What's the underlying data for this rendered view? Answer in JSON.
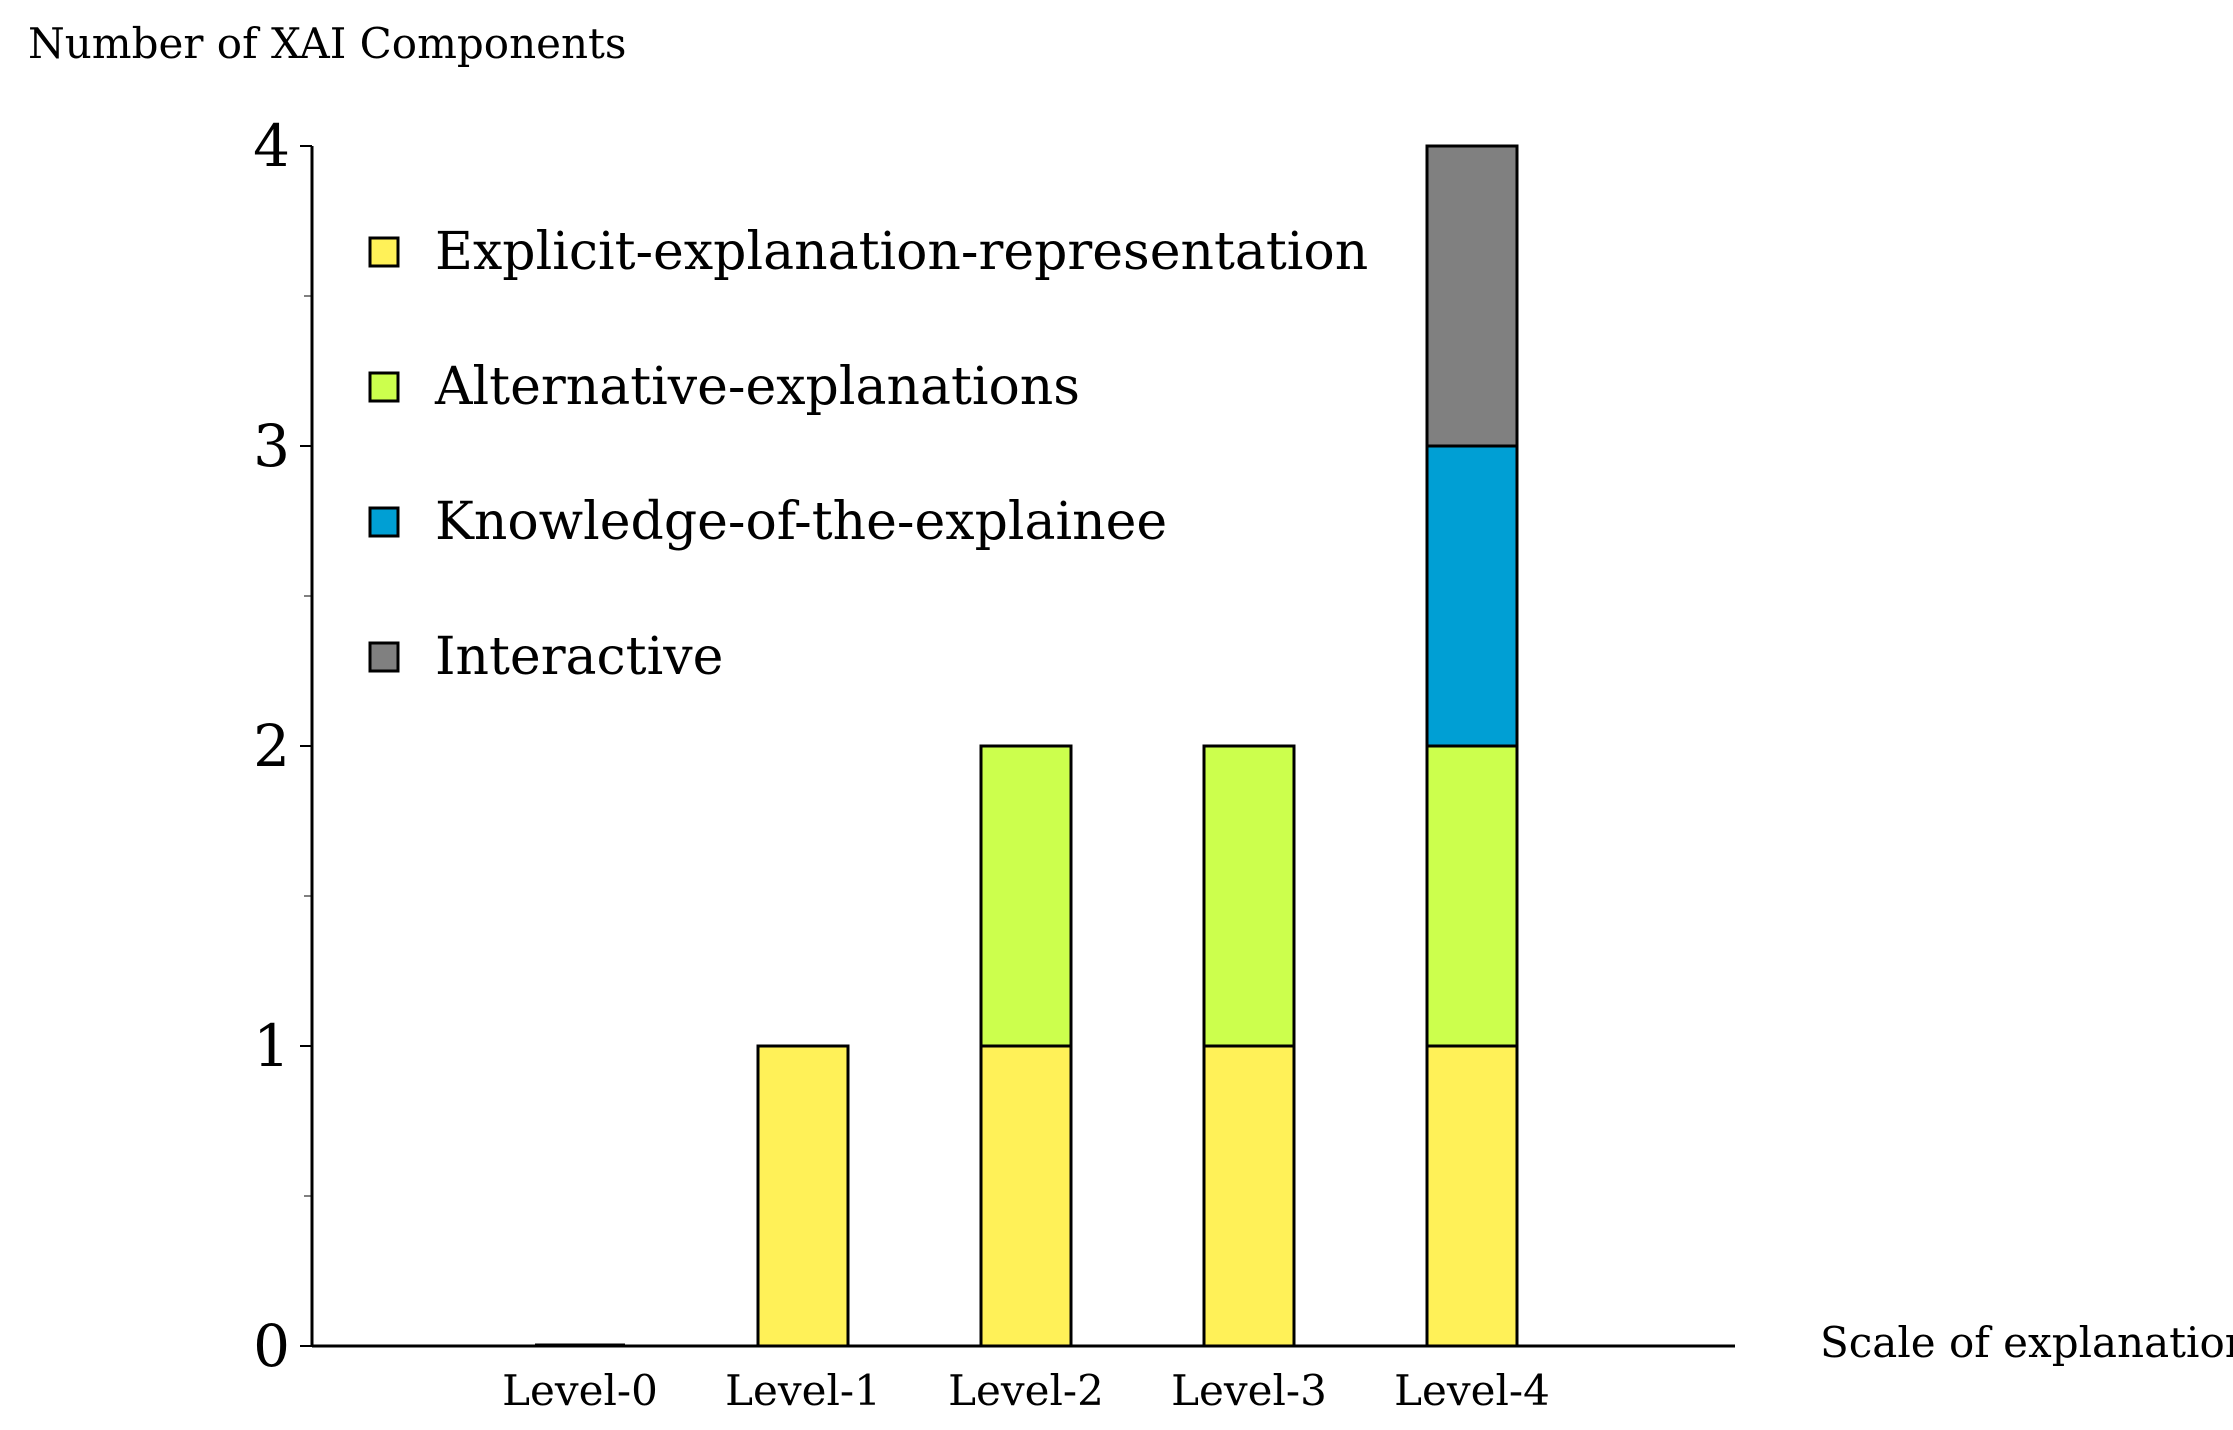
{
  "chart_data": {
    "type": "bar",
    "stacked": true,
    "title": "",
    "ylabel": "Number of XAI Components",
    "xlabel": "Scale of explanation",
    "categories": [
      "Level-0",
      "Level-1",
      "Level-2",
      "Level-3",
      "Level-4"
    ],
    "ylim": [
      0,
      4
    ],
    "yticks": [
      "0",
      "1",
      "2",
      "3",
      "4"
    ],
    "grid": false,
    "legend_position": "top-left",
    "series": [
      {
        "name": "Explicit-explanation-representation",
        "color": "#FFF158",
        "values": [
          0,
          1,
          1,
          1,
          1
        ]
      },
      {
        "name": "Alternative-explanations",
        "color": "#CCFF4D",
        "values": [
          0,
          0,
          1,
          1,
          1
        ]
      },
      {
        "name": "Knowledge-of-the-explainee",
        "color": "#009FD4",
        "values": [
          0,
          0,
          0,
          0,
          1
        ]
      },
      {
        "name": "Interactive",
        "color": "#808080",
        "values": [
          0,
          0,
          0,
          0,
          1
        ]
      }
    ]
  }
}
